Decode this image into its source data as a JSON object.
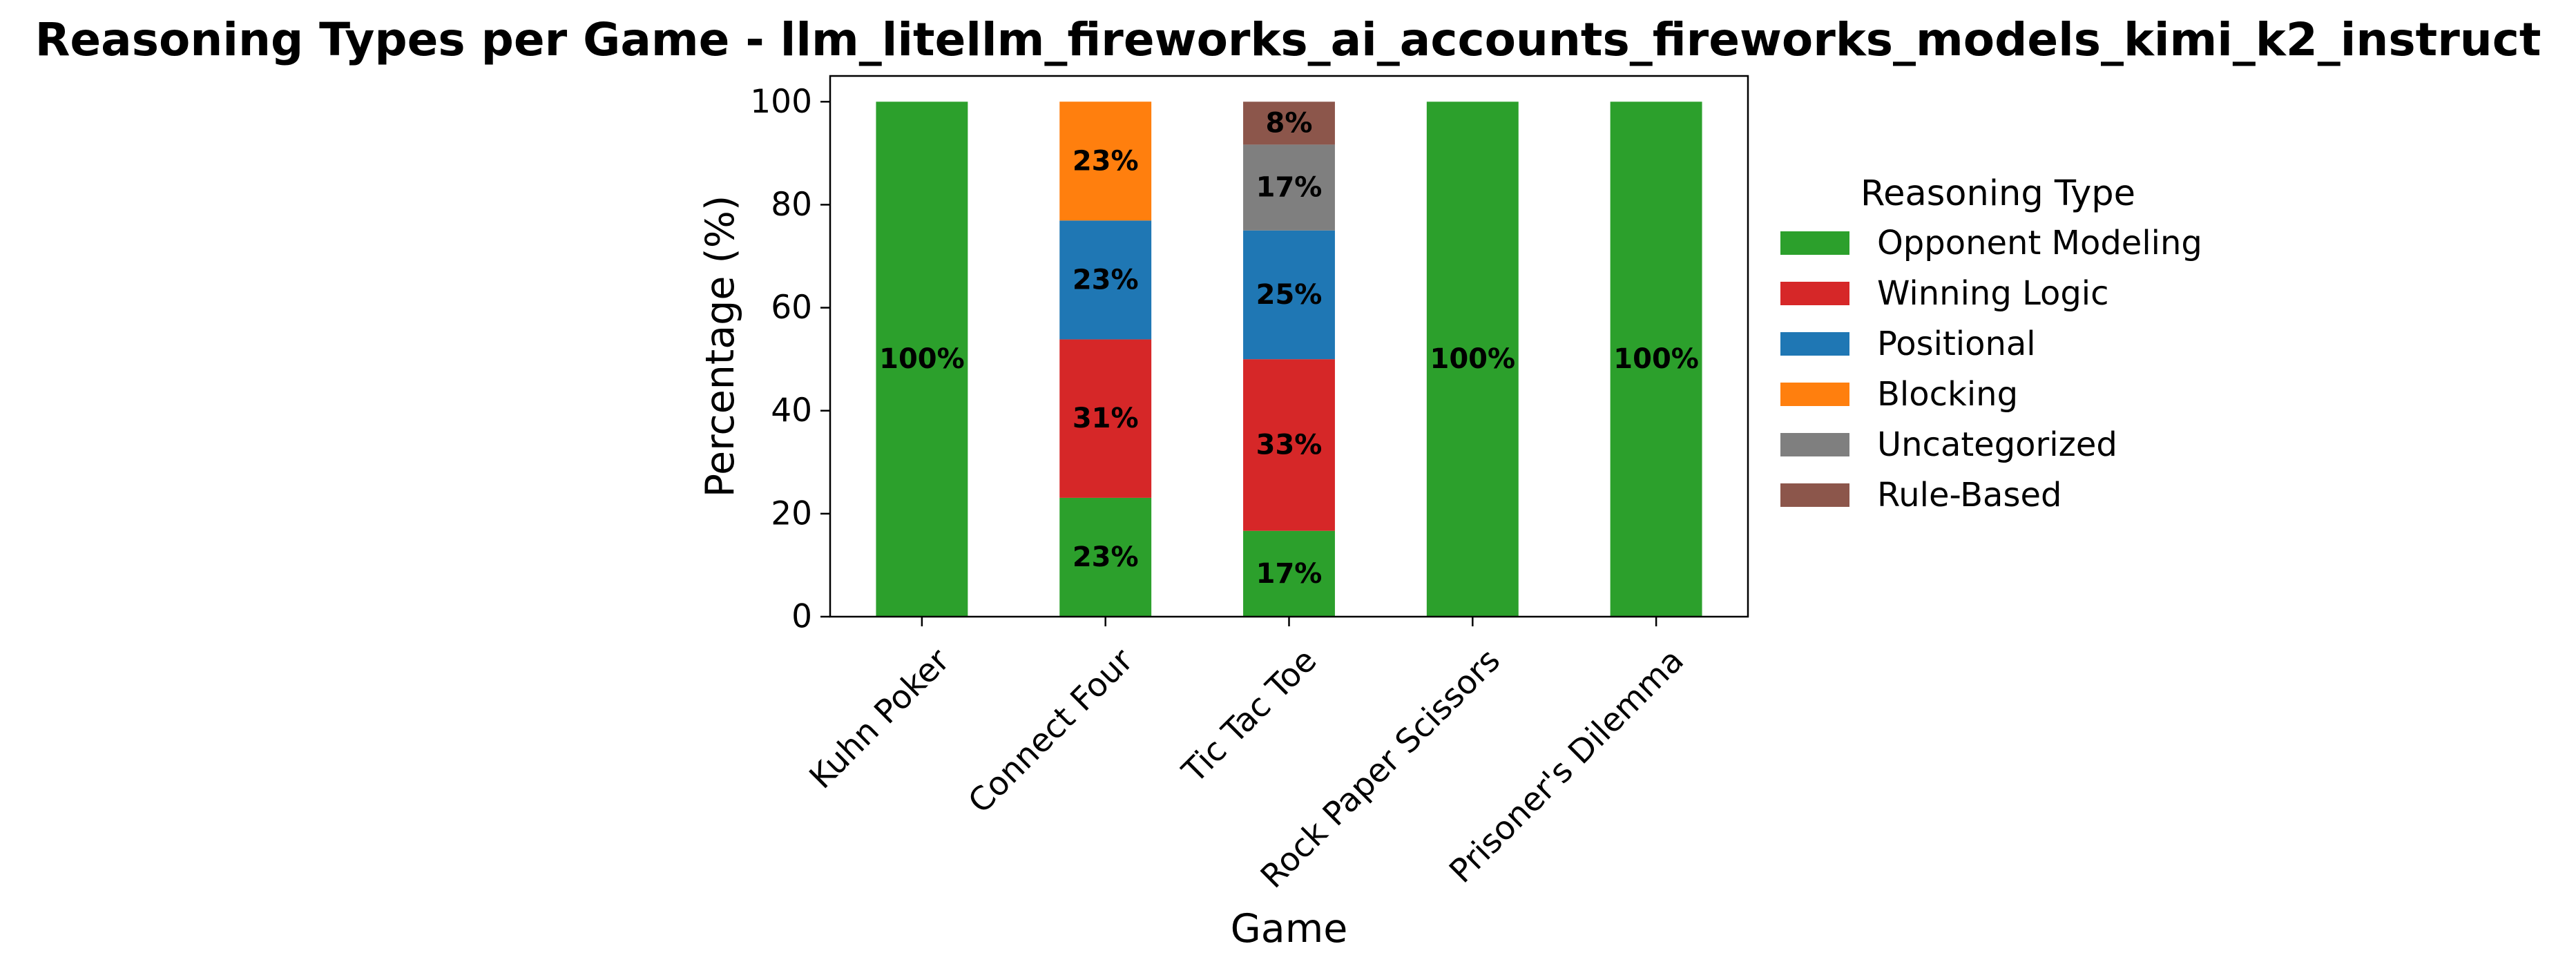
{
  "chart_data": {
    "type": "bar",
    "stacked": true,
    "title": "Reasoning Types per Game - llm_litellm_fireworks_ai_accounts_fireworks_models_kimi_k2_instruct",
    "xlabel": "Game",
    "ylabel": "Percentage (%)",
    "ylim": [
      0,
      105
    ],
    "yticks": [
      0,
      20,
      40,
      60,
      80,
      100
    ],
    "categories": [
      "Kuhn Poker",
      "Connect Four",
      "Tic Tac Toe",
      "Rock Paper Scissors",
      "Prisoner's Dilemma"
    ],
    "series": [
      {
        "name": "Opponent Modeling",
        "color": "#2ca02c",
        "values": [
          100,
          23.08,
          16.67,
          100,
          100
        ],
        "labels": [
          "100%",
          "23%",
          "17%",
          "100%",
          "100%"
        ]
      },
      {
        "name": "Winning Logic",
        "color": "#d62728",
        "values": [
          0,
          30.77,
          33.33,
          0,
          0
        ],
        "labels": [
          "",
          "31%",
          "33%",
          "",
          ""
        ]
      },
      {
        "name": "Positional",
        "color": "#1f77b4",
        "values": [
          0,
          23.08,
          25,
          0,
          0
        ],
        "labels": [
          "",
          "23%",
          "25%",
          "",
          ""
        ]
      },
      {
        "name": "Blocking",
        "color": "#ff7f0e",
        "values": [
          0,
          23.08,
          0,
          0,
          0
        ],
        "labels": [
          "",
          "23%",
          "",
          "",
          ""
        ]
      },
      {
        "name": "Uncategorized",
        "color": "#7f7f7f",
        "values": [
          0,
          0,
          16.67,
          0,
          0
        ],
        "labels": [
          "",
          "",
          "17%",
          "",
          ""
        ]
      },
      {
        "name": "Rule-Based",
        "color": "#8c564b",
        "values": [
          0,
          0,
          8.33,
          0,
          0
        ],
        "labels": [
          "",
          "",
          "8%",
          "",
          ""
        ]
      }
    ],
    "legend": {
      "title": "Reasoning Type",
      "position": "right"
    },
    "grid": false
  }
}
